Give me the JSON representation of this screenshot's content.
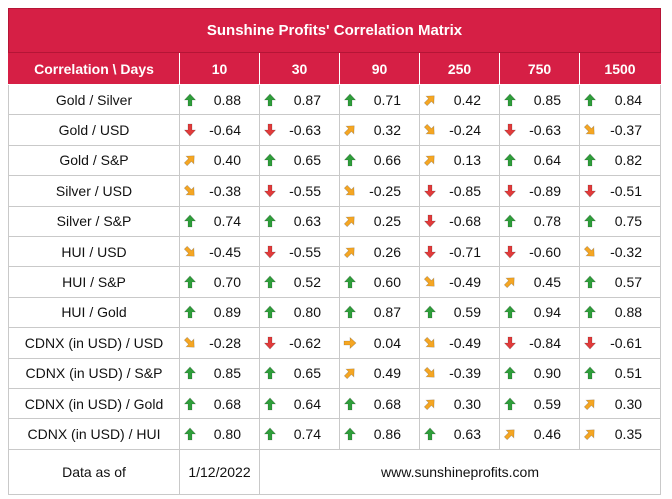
{
  "title": "Sunshine Profits' Correlation Matrix",
  "header": {
    "corner": "Correlation \\ Days",
    "columns": [
      "10",
      "30",
      "90",
      "250",
      "750",
      "1500"
    ]
  },
  "rows": [
    {
      "label": "Gold / Silver",
      "values": [
        "0.88",
        "0.87",
        "0.71",
        "0.42",
        "0.85",
        "0.84"
      ],
      "icons": [
        "up",
        "up",
        "up",
        "up-right",
        "up",
        "up"
      ]
    },
    {
      "label": "Gold / USD",
      "values": [
        "-0.64",
        "-0.63",
        "0.32",
        "-0.24",
        "-0.63",
        "-0.37"
      ],
      "icons": [
        "down",
        "down",
        "up-right",
        "down-right",
        "down",
        "down-right"
      ]
    },
    {
      "label": "Gold / S&P",
      "values": [
        "0.40",
        "0.65",
        "0.66",
        "0.13",
        "0.64",
        "0.82"
      ],
      "icons": [
        "up-right",
        "up",
        "up",
        "up-right",
        "up",
        "up"
      ]
    },
    {
      "label": "Silver / USD",
      "values": [
        "-0.38",
        "-0.55",
        "-0.25",
        "-0.85",
        "-0.89",
        "-0.51"
      ],
      "icons": [
        "down-right",
        "down",
        "down-right",
        "down",
        "down",
        "down"
      ]
    },
    {
      "label": "Silver / S&P",
      "values": [
        "0.74",
        "0.63",
        "0.25",
        "-0.68",
        "0.78",
        "0.75"
      ],
      "icons": [
        "up",
        "up",
        "up-right",
        "down",
        "up",
        "up"
      ]
    },
    {
      "label": "HUI / USD",
      "values": [
        "-0.45",
        "-0.55",
        "0.26",
        "-0.71",
        "-0.60",
        "-0.32"
      ],
      "icons": [
        "down-right",
        "down",
        "up-right",
        "down",
        "down",
        "down-right"
      ]
    },
    {
      "label": "HUI / S&P",
      "values": [
        "0.70",
        "0.52",
        "0.60",
        "-0.49",
        "0.45",
        "0.57"
      ],
      "icons": [
        "up",
        "up",
        "up",
        "down-right",
        "up-right",
        "up"
      ]
    },
    {
      "label": "HUI / Gold",
      "values": [
        "0.89",
        "0.80",
        "0.87",
        "0.59",
        "0.94",
        "0.88"
      ],
      "icons": [
        "up",
        "up",
        "up",
        "up",
        "up",
        "up"
      ]
    },
    {
      "label": "CDNX (in USD) / USD",
      "values": [
        "-0.28",
        "-0.62",
        "0.04",
        "-0.49",
        "-0.84",
        "-0.61"
      ],
      "icons": [
        "down-right",
        "down",
        "right",
        "down-right",
        "down",
        "down"
      ]
    },
    {
      "label": "CDNX (in USD) / S&P",
      "values": [
        "0.85",
        "0.65",
        "0.49",
        "-0.39",
        "0.90",
        "0.51"
      ],
      "icons": [
        "up",
        "up",
        "up-right",
        "down-right",
        "up",
        "up"
      ]
    },
    {
      "label": "CDNX (in USD) / Gold",
      "values": [
        "0.68",
        "0.64",
        "0.68",
        "0.30",
        "0.59",
        "0.30"
      ],
      "icons": [
        "up",
        "up",
        "up",
        "up-right",
        "up",
        "up-right"
      ]
    },
    {
      "label": "CDNX (in USD) / HUI",
      "values": [
        "0.80",
        "0.74",
        "0.86",
        "0.63",
        "0.46",
        "0.35"
      ],
      "icons": [
        "up",
        "up",
        "up",
        "up",
        "up-right",
        "up-right"
      ]
    }
  ],
  "footer": {
    "label": "Data as of",
    "date": "1/12/2022",
    "website": "www.sunshineprofits.com"
  },
  "colors": {
    "brand_red": "#d61f45",
    "up_green": "#2e9e3a",
    "down_red": "#e23b3b",
    "sideways_orange": "#f5a623"
  }
}
